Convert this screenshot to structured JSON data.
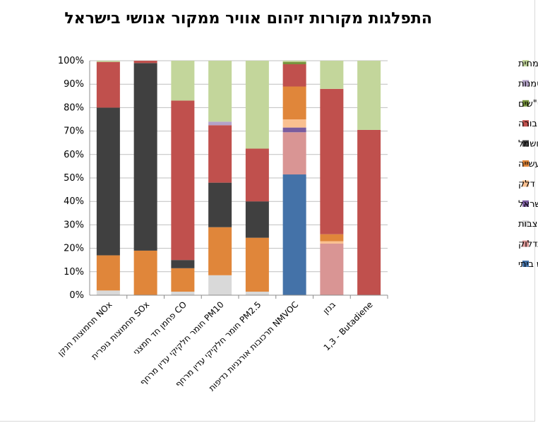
{
  "chart_data": {
    "type": "bar",
    "stacked": true,
    "percent": true,
    "title": "התפלגות מקורות זיהום אוויר ממקור אנושי בישראל",
    "xlabel": "",
    "ylabel": "",
    "ylim": [
      0,
      100
    ],
    "yticks": [
      "0%",
      "10%",
      "20%",
      "30%",
      "40%",
      "50%",
      "60%",
      "70%",
      "80%",
      "90%",
      "100%"
    ],
    "grid": true,
    "legend_position": "right",
    "categories": [
      "תחמוצות חנקן NOx",
      "תחמוצות גופרית SOx",
      "פחמן חד חמצני CO",
      "חומר חלקיקי עדין מרחף PM10",
      "חומר חלקיקי עדין מרחף PM2.5",
      "תרכובות אורגניות נדיפות NMVOC",
      "בנזן",
      "1,3 - Butadiene"
    ],
    "series": [
      {
        "name": "שימוש ביתי",
        "color": "#4472a8",
        "values": [
          0,
          0,
          0,
          0,
          0,
          51.5,
          0,
          0
        ]
      },
      {
        "name": "תחנות תדלוק",
        "color": "#d99594",
        "values": [
          0,
          0,
          0,
          0,
          0,
          18,
          22,
          0
        ]
      },
      {
        "name": "מחצבות",
        "color": "#d9d9d9",
        "values": [
          2,
          0,
          1.5,
          8.5,
          1.5,
          0,
          0,
          0
        ]
      },
      {
        "name": "יערות קרן קיימת לישראל",
        "color": "#7a5c9e",
        "values": [
          0,
          0,
          0,
          0,
          0,
          2,
          0,
          0
        ]
      },
      {
        "name": "חוות מכלי דלק",
        "color": "#fac090",
        "values": [
          0,
          0,
          0,
          0,
          0,
          3.5,
          1,
          0
        ]
      },
      {
        "name": "תעשייה",
        "color": "#e0863a",
        "values": [
          15,
          19,
          10,
          20.5,
          23,
          14,
          3,
          0
        ]
      },
      {
        "name": "ייצור חשמל",
        "color": "#404040",
        "values": [
          63,
          80,
          3.5,
          19,
          15.5,
          0,
          0,
          0
        ]
      },
      {
        "name": "תחבורה",
        "color": "#c0504d",
        "values": [
          19.5,
          1,
          68,
          24.5,
          22.5,
          9.5,
          62,
          70.5
        ]
      },
      {
        "name": "מט\"שים",
        "color": "#77933c",
        "values": [
          0,
          0,
          0,
          0,
          0,
          1,
          0,
          0
        ]
      },
      {
        "name": "מטמנות",
        "color": "#b3a2c7",
        "values": [
          0,
          0,
          0,
          1.5,
          0,
          0,
          0,
          0
        ]
      },
      {
        "name": "שריפת פסולת צמחית",
        "color": "#c3d69b",
        "values": [
          0.5,
          0,
          17,
          26,
          37.5,
          0.5,
          12,
          29.5
        ]
      }
    ]
  },
  "legend_order": [
    10,
    9,
    8,
    7,
    6,
    5,
    4,
    3,
    2,
    1,
    0
  ]
}
